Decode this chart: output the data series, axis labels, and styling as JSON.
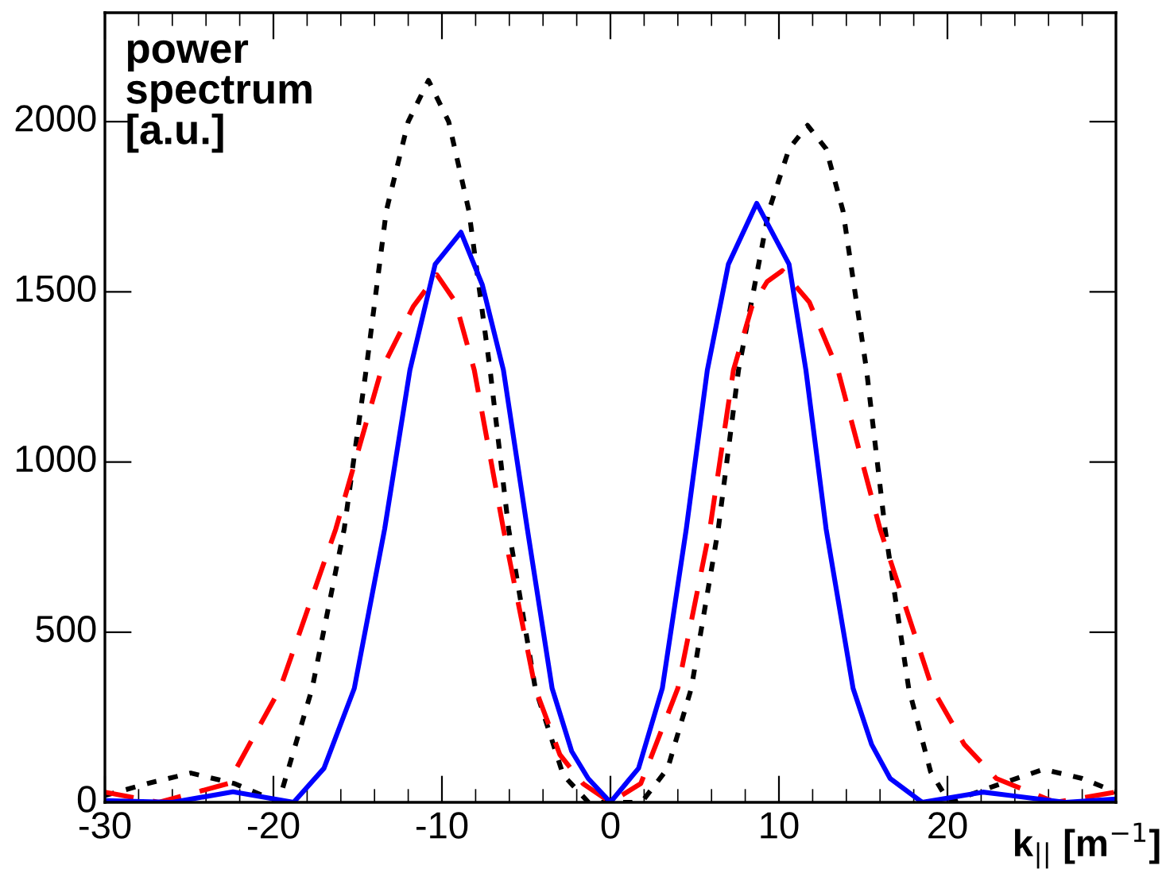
{
  "chart_data": {
    "type": "line",
    "xlabel": "k$_{||}$ [m$^{−1}$]",
    "ylabel": "power\nspectrum\n[a.u.]",
    "xlim": [
      -30,
      30
    ],
    "ylim": [
      0,
      2320
    ],
    "xticks": [
      -30,
      -20,
      -10,
      0,
      10,
      20
    ],
    "yticks": [
      0,
      500,
      1000,
      1500,
      2000
    ],
    "grid": false,
    "marker": "none",
    "series": [
      {
        "color": "#000000",
        "line_style": "dotted",
        "x": [
          -30,
          -27.5,
          -24.9,
          -22.3,
          -19.7,
          -17.7,
          -15.8,
          -14.5,
          -13.3,
          -12.0,
          -10.8,
          -9.6,
          -8.4,
          -7.14,
          -6.04,
          -4.46,
          -2.8,
          -1.3,
          0,
          1.3,
          2.0,
          3.4,
          4.8,
          6.4,
          7.6,
          9.4,
          10.6,
          11.7,
          12.8,
          13.8,
          15.2,
          16.3,
          17.7,
          19.0,
          20.1,
          22.9,
          25.7,
          28.0,
          30
        ],
        "values": [
          20,
          55,
          86,
          55,
          0,
          335,
          803,
          1270,
          1738,
          2000,
          2121,
          2000,
          1738,
          1270,
          803,
          335,
          80,
          0,
          0,
          0,
          10,
          100,
          335,
          803,
          1270,
          1738,
          1920,
          1989,
          1920,
          1738,
          1270,
          803,
          335,
          90,
          0,
          50,
          97,
          70,
          30
        ]
      },
      {
        "color": "#ff0000",
        "line_style": "dashed",
        "x": [
          -30,
          -26.8,
          -22.7,
          -19.6,
          -16.3,
          -13.6,
          -11.7,
          -10.3,
          -9.2,
          -8.08,
          -6.35,
          -4.46,
          -3.0,
          -1.63,
          0,
          1.8,
          4.0,
          5.9,
          7.3,
          8.4,
          9.3,
          10.2,
          11.8,
          13.5,
          16.0,
          19.1,
          21.0,
          22.9,
          26.4,
          30
        ],
        "values": [
          30,
          0,
          55,
          335,
          803,
          1270,
          1457,
          1550,
          1470,
          1270,
          803,
          335,
          140,
          55,
          0,
          55,
          335,
          803,
          1270,
          1457,
          1530,
          1562,
          1470,
          1270,
          803,
          335,
          170,
          70,
          0,
          30
        ]
      },
      {
        "color": "#0000ff",
        "line_style": "solid",
        "x": [
          -30,
          -26,
          -22.4,
          -18.8,
          -17.0,
          -15.2,
          -13.4,
          -11.9,
          -10.4,
          -8.87,
          -7.6,
          -6.35,
          -4.93,
          -3.46,
          -2.3,
          -1.32,
          0,
          1.0,
          1.67,
          3.08,
          4.5,
          5.75,
          7.0,
          8.68,
          10.6,
          11.6,
          12.8,
          14.4,
          15.5,
          16.6,
          18.5,
          22.1,
          27,
          30
        ],
        "values": [
          5,
          0,
          31,
          0,
          100,
          335,
          803,
          1270,
          1581,
          1675,
          1520,
          1270,
          803,
          335,
          150,
          70,
          0,
          60,
          100,
          335,
          803,
          1270,
          1581,
          1760,
          1581,
          1270,
          803,
          335,
          170,
          70,
          0,
          30,
          0,
          10
        ]
      }
    ]
  }
}
